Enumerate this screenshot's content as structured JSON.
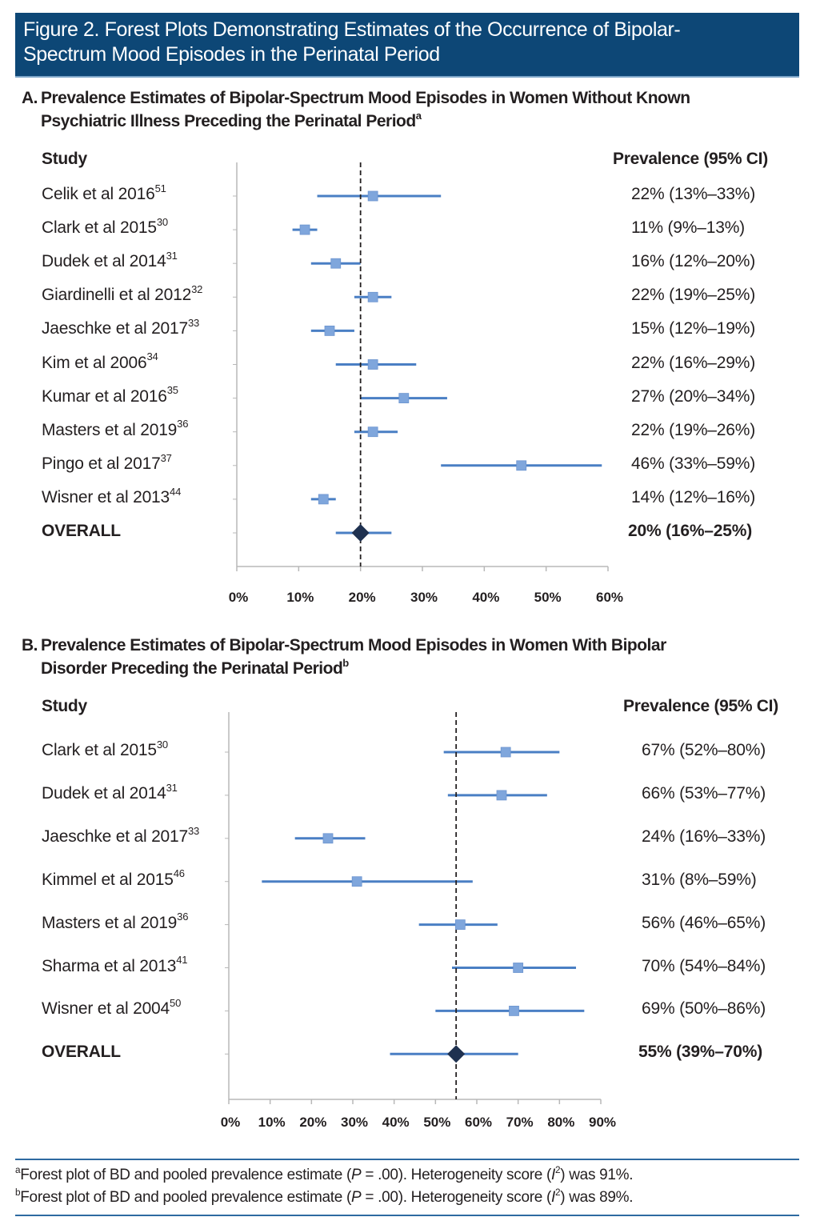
{
  "figure": {
    "title_line1": "Figure 2. Forest Plots Demonstrating Estimates of the Occurrence of Bipolar-",
    "title_line2": "Spectrum Mood Episodes in the Perinatal Period"
  },
  "colors": {
    "title_bg": "#0d4776",
    "ci_line": "#4a7fc4",
    "study_marker": "#7fa6dc",
    "overall_marker": "#1f3150",
    "reference_line": "#231f20",
    "axis": "#b8b8b8",
    "footnote_rule": "#2e6aa1"
  },
  "footnotes": [
    {
      "mark": "a",
      "pre": "Forest plot of BD and pooled prevalence estimate (",
      "p": "P",
      "mid": " = .00). Heterogeneity score (",
      "i": "I",
      "sup": "2",
      "post": ") was 91%."
    },
    {
      "mark": "b",
      "pre": "Forest plot of BD and pooled prevalence estimate (",
      "p": "P",
      "mid": " = .00). Heterogeneity score (",
      "i": "I",
      "sup": "2",
      "post": ") was 89%."
    }
  ],
  "chart_data": [
    {
      "type": "forest",
      "panel_letter": "A.",
      "title_line1": "Prevalence Estimates of Bipolar-Spectrum Mood Episodes in Women Without Known",
      "title_line2": "Psychiatric Illness Preceding the Perinatal Period",
      "title_sup": "a",
      "study_header": "Study",
      "estimate_header": "Prevalence (95% CI)",
      "xlabel": "",
      "xlim": [
        0,
        60
      ],
      "xticks": [
        0,
        10,
        20,
        30,
        40,
        50,
        60
      ],
      "xtick_labels": [
        "0%",
        "10%",
        "20%",
        "30%",
        "40%",
        "50%",
        "60%"
      ],
      "reference_line": 20,
      "studies": [
        {
          "name": "Celik et al 2016",
          "ref": "51",
          "est": 22,
          "lo": 13,
          "hi": 33,
          "label": "22% (13%–33%)"
        },
        {
          "name": "Clark et al 2015",
          "ref": "30",
          "est": 11,
          "lo": 9,
          "hi": 13,
          "label": "11% (9%–13%)"
        },
        {
          "name": "Dudek et al 2014",
          "ref": "31",
          "est": 16,
          "lo": 12,
          "hi": 20,
          "label": "16% (12%–20%)"
        },
        {
          "name": "Giardinelli et al 2012",
          "ref": "32",
          "est": 22,
          "lo": 19,
          "hi": 25,
          "label": "22% (19%–25%)"
        },
        {
          "name": "Jaeschke et al 2017",
          "ref": "33",
          "est": 15,
          "lo": 12,
          "hi": 19,
          "label": "15% (12%–19%)"
        },
        {
          "name": "Kim et al 2006",
          "ref": "34",
          "est": 22,
          "lo": 16,
          "hi": 29,
          "label": "22% (16%–29%)"
        },
        {
          "name": "Kumar et al 2016",
          "ref": "35",
          "est": 27,
          "lo": 20,
          "hi": 34,
          "label": "27% (20%–34%)"
        },
        {
          "name": "Masters et al 2019",
          "ref": "36",
          "est": 22,
          "lo": 19,
          "hi": 26,
          "label": "22% (19%–26%)"
        },
        {
          "name": "Pingo et al 2017",
          "ref": "37",
          "est": 46,
          "lo": 33,
          "hi": 59,
          "label": "46% (33%–59%)"
        },
        {
          "name": "Wisner et al 2013",
          "ref": "44",
          "est": 14,
          "lo": 12,
          "hi": 16,
          "label": "14% (12%–16%)"
        }
      ],
      "overall": {
        "name": "OVERALL",
        "est": 20,
        "lo": 16,
        "hi": 25,
        "label": "20% (16%–25%)"
      }
    },
    {
      "type": "forest",
      "panel_letter": "B.",
      "title_line1": "Prevalence Estimates of Bipolar-Spectrum Mood Episodes in Women With Bipolar",
      "title_line2": "Disorder Preceding the Perinatal Period",
      "title_sup": "b",
      "study_header": "Study",
      "estimate_header": "Prevalence (95% CI)",
      "xlabel": "",
      "xlim": [
        0,
        90
      ],
      "xticks": [
        0,
        10,
        20,
        30,
        40,
        50,
        60,
        70,
        80,
        90
      ],
      "xtick_labels": [
        "0%",
        "10%",
        "20%",
        "30%",
        "40%",
        "50%",
        "60%",
        "70%",
        "80%",
        "90%"
      ],
      "reference_line": 55,
      "studies": [
        {
          "name": "Clark et al 2015",
          "ref": "30",
          "est": 67,
          "lo": 52,
          "hi": 80,
          "label": "67% (52%–80%)"
        },
        {
          "name": "Dudek et al 2014",
          "ref": "31",
          "est": 66,
          "lo": 53,
          "hi": 77,
          "label": "66% (53%–77%)"
        },
        {
          "name": "Jaeschke et al 2017",
          "ref": "33",
          "est": 24,
          "lo": 16,
          "hi": 33,
          "label": "24% (16%–33%)"
        },
        {
          "name": "Kimmel et al 2015",
          "ref": "46",
          "est": 31,
          "lo": 8,
          "hi": 59,
          "label": "31% (8%–59%)"
        },
        {
          "name": "Masters et al 2019",
          "ref": "36",
          "est": 56,
          "lo": 46,
          "hi": 65,
          "label": "56% (46%–65%)"
        },
        {
          "name": "Sharma et al 2013",
          "ref": "41",
          "est": 70,
          "lo": 54,
          "hi": 84,
          "label": "70% (54%–84%)"
        },
        {
          "name": "Wisner et al 2004",
          "ref": "50",
          "est": 69,
          "lo": 50,
          "hi": 86,
          "label": "69% (50%–86%)"
        }
      ],
      "overall": {
        "name": "OVERALL",
        "est": 55,
        "lo": 39,
        "hi": 70,
        "label": "55% (39%–70%)"
      }
    }
  ]
}
